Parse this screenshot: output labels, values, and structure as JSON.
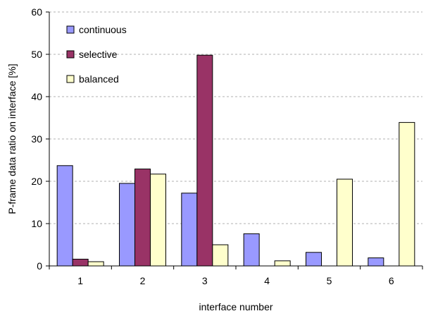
{
  "chart_data": {
    "type": "bar",
    "xlabel": "interface number",
    "ylabel": "P-frame data ratio on interface [%]",
    "categories": [
      "1",
      "2",
      "3",
      "4",
      "5",
      "6"
    ],
    "ylim": [
      0,
      60
    ],
    "yticks": [
      "0",
      "10",
      "20",
      "30",
      "40",
      "50",
      "60"
    ],
    "grid": "horizontal dashed",
    "legend_position": "top-left",
    "series": [
      {
        "name": "continuous",
        "color": "#9999ff",
        "values": [
          23.7,
          19.5,
          17.2,
          7.6,
          3.2,
          1.9
        ]
      },
      {
        "name": "selective",
        "color": "#993366",
        "values": [
          1.6,
          22.9,
          49.8,
          0,
          0,
          0
        ]
      },
      {
        "name": "balanced",
        "color": "#ffffcc",
        "values": [
          1.0,
          21.7,
          5.0,
          1.2,
          20.5,
          33.9
        ]
      }
    ]
  }
}
